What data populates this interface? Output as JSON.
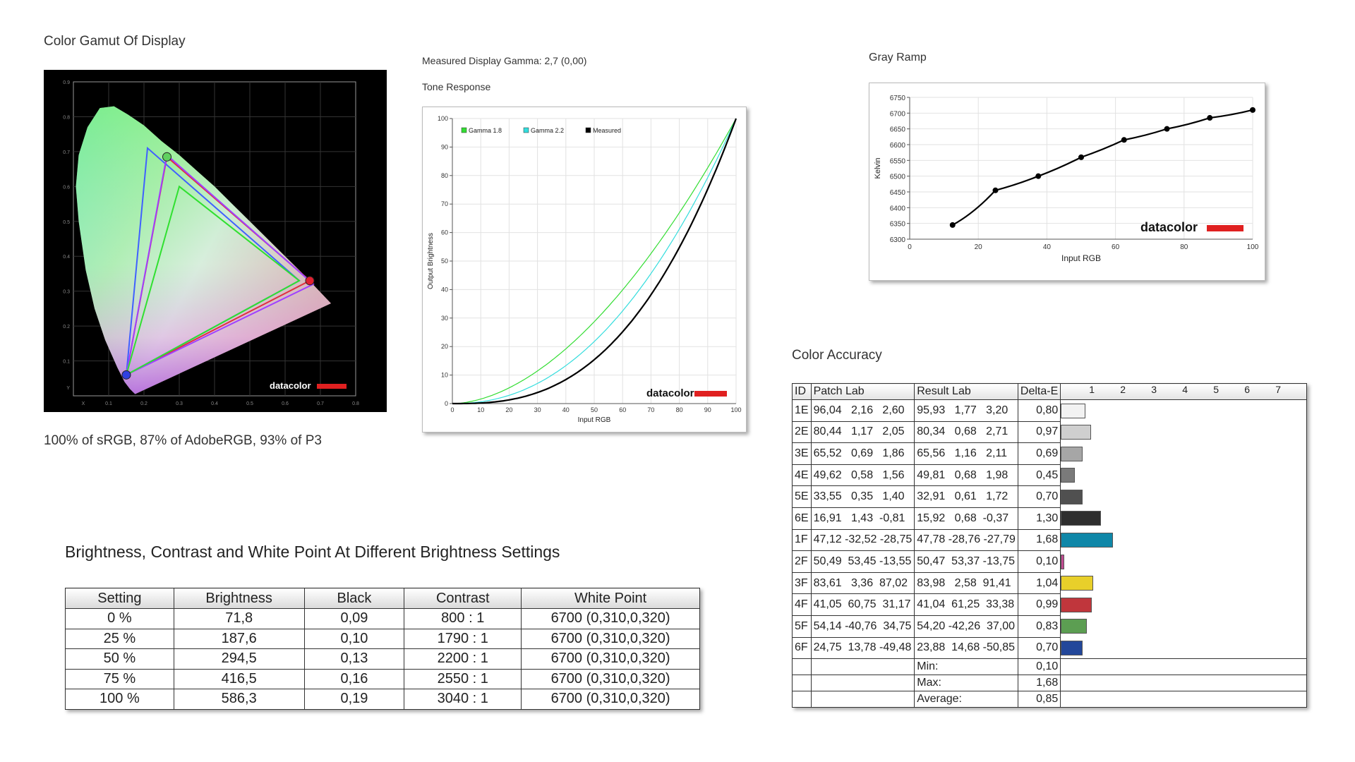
{
  "gamut": {
    "title": "Color Gamut Of Display",
    "summary": "100% of sRGB, 87% of AdobeRGB, 93% of P3",
    "brand": "datacolor",
    "y_ticks": [
      "0.9",
      "0.8",
      "0.7",
      "0.6",
      "0.5",
      "0.4",
      "0.3",
      "0.2",
      "0.1",
      "Y"
    ],
    "x_ticks": [
      "X",
      "0.1",
      "0.2",
      "0.3",
      "0.4",
      "0.5",
      "0.6",
      "0.7",
      "0.8"
    ]
  },
  "tone": {
    "gamma_label": "Measured Display Gamma: 2,7 (0,00)",
    "title": "Tone Response",
    "xlabel": "Input RGB",
    "ylabel": "Output Brightness",
    "brand": "datacolor",
    "legend": [
      "Gamma 1.8",
      "Gamma 2.2",
      "Measured"
    ]
  },
  "gray": {
    "title": "Gray Ramp",
    "xlabel": "Input RGB",
    "ylabel": "Kelvin",
    "brand": "datacolor"
  },
  "accuracy": {
    "title": "Color Accuracy",
    "headers": [
      "ID",
      "Patch Lab",
      "Result Lab",
      "Delta-E"
    ],
    "scale": [
      "1",
      "2",
      "3",
      "4",
      "5",
      "6",
      "7"
    ],
    "rows": [
      {
        "id": "1E",
        "patch": "96,04   2,16   2,60",
        "result": "95,93   1,77   3,20",
        "de": "0,80",
        "val": 0.8,
        "color": "#f2f2f2"
      },
      {
        "id": "2E",
        "patch": "80,44   1,17   2,05",
        "result": "80,34   0,68   2,71",
        "de": "0,97",
        "val": 0.97,
        "color": "#cfcfcf"
      },
      {
        "id": "3E",
        "patch": "65,52   0,69   1,86",
        "result": "65,56   1,16   2,11",
        "de": "0,69",
        "val": 0.69,
        "color": "#a6a6a6"
      },
      {
        "id": "4E",
        "patch": "49,62   0,58   1,56",
        "result": "49,81   0,68   1,98",
        "de": "0,45",
        "val": 0.45,
        "color": "#7a7a7a"
      },
      {
        "id": "5E",
        "patch": "33,55   0,35   1,40",
        "result": "32,91   0,61   1,72",
        "de": "0,70",
        "val": 0.7,
        "color": "#505050"
      },
      {
        "id": "6E",
        "patch": "16,91   1,43  -0,81",
        "result": "15,92   0,68  -0,37",
        "de": "1,30",
        "val": 1.3,
        "color": "#2e2e2e"
      },
      {
        "id": "1F",
        "patch": "47,12 -32,52 -28,75",
        "result": "47,78 -28,76 -27,79",
        "de": "1,68",
        "val": 1.68,
        "color": "#0f87a8"
      },
      {
        "id": "2F",
        "patch": "50,49  53,45 -13,55",
        "result": "50,47  53,37 -13,75",
        "de": "0,10",
        "val": 0.1,
        "color": "#c04a90"
      },
      {
        "id": "3F",
        "patch": "83,61   3,36  87,02",
        "result": "83,98   2,58  91,41",
        "de": "1,04",
        "val": 1.04,
        "color": "#e8cf2a"
      },
      {
        "id": "4F",
        "patch": "41,05  60,75  31,17",
        "result": "41,04  61,25  33,38",
        "de": "0,99",
        "val": 0.99,
        "color": "#c0363c"
      },
      {
        "id": "5F",
        "patch": "54,14 -40,76  34,75",
        "result": "54,20 -42,26  37,00",
        "de": "0,83",
        "val": 0.83,
        "color": "#5c9e52"
      },
      {
        "id": "6F",
        "patch": "24,75  13,78 -49,48",
        "result": "23,88  14,68 -50,85",
        "de": "0,70",
        "val": 0.7,
        "color": "#23479a"
      }
    ],
    "summary": [
      {
        "label": "Min:",
        "value": "0,10"
      },
      {
        "label": "Max:",
        "value": "1,68"
      },
      {
        "label": "Average:",
        "value": "0,85"
      }
    ]
  },
  "brightness": {
    "title": "Brightness, Contrast and White Point At Different Brightness Settings",
    "headers": [
      "Setting",
      "Brightness",
      "Black",
      "Contrast",
      "White Point"
    ],
    "rows": [
      [
        "0 %",
        "71,8",
        "0,09",
        "800 : 1",
        "6700 (0,310,0,320)"
      ],
      [
        "25 %",
        "187,6",
        "0,10",
        "1790 : 1",
        "6700 (0,310,0,320)"
      ],
      [
        "50 %",
        "294,5",
        "0,13",
        "2200 : 1",
        "6700 (0,310,0,320)"
      ],
      [
        "75 %",
        "416,5",
        "0,16",
        "2550 : 1",
        "6700 (0,310,0,320)"
      ],
      [
        "100 %",
        "586,3",
        "0,19",
        "3040 : 1",
        "6700 (0,310,0,320)"
      ]
    ]
  },
  "chart_data": [
    {
      "type": "scatter",
      "name": "gamut",
      "xlim": [
        0,
        0.8
      ],
      "ylim": [
        0,
        0.9
      ],
      "gamut_triangles": [
        {
          "name": "measured",
          "color": "#e03040",
          "points": [
            [
              0.67,
              0.33
            ],
            [
              0.265,
              0.685
            ],
            [
              0.15,
              0.06
            ]
          ]
        },
        {
          "name": "adobe",
          "color": "#4060ff",
          "points": [
            [
              0.64,
              0.33
            ],
            [
              0.21,
              0.71
            ],
            [
              0.15,
              0.06
            ]
          ]
        },
        {
          "name": "p3",
          "color": "#a040ff",
          "points": [
            [
              0.68,
              0.32
            ],
            [
              0.265,
              0.69
            ],
            [
              0.15,
              0.06
            ]
          ]
        },
        {
          "name": "srgb",
          "color": "#30e030",
          "points": [
            [
              0.64,
              0.33
            ],
            [
              0.3,
              0.6
            ],
            [
              0.15,
              0.06
            ]
          ]
        }
      ]
    },
    {
      "type": "line",
      "name": "tone",
      "xlim": [
        0,
        100
      ],
      "ylim": [
        0,
        100
      ],
      "x_ticks": [
        0,
        10,
        20,
        30,
        40,
        50,
        60,
        70,
        80,
        90,
        100
      ],
      "y_ticks": [
        0,
        10,
        20,
        30,
        40,
        50,
        60,
        70,
        80,
        90,
        100
      ],
      "series": [
        {
          "name": "Gamma 1.8",
          "gamma": 1.8,
          "color": "#33dd33"
        },
        {
          "name": "Gamma 2.2",
          "gamma": 2.2,
          "color": "#33dddd"
        },
        {
          "name": "Measured",
          "gamma": 2.7,
          "color": "#000000"
        }
      ]
    },
    {
      "type": "line",
      "name": "gray",
      "xlim": [
        0,
        100
      ],
      "ylim": [
        6300,
        6750
      ],
      "x_ticks": [
        0,
        20,
        40,
        60,
        80,
        100
      ],
      "y_ticks": [
        6300,
        6350,
        6400,
        6450,
        6500,
        6550,
        6600,
        6650,
        6700,
        6750
      ],
      "x": [
        12.5,
        25,
        37.5,
        50,
        62.5,
        75,
        87.5,
        100
      ],
      "y": [
        6345,
        6455,
        6500,
        6560,
        6615,
        6650,
        6685,
        6710
      ]
    }
  ]
}
